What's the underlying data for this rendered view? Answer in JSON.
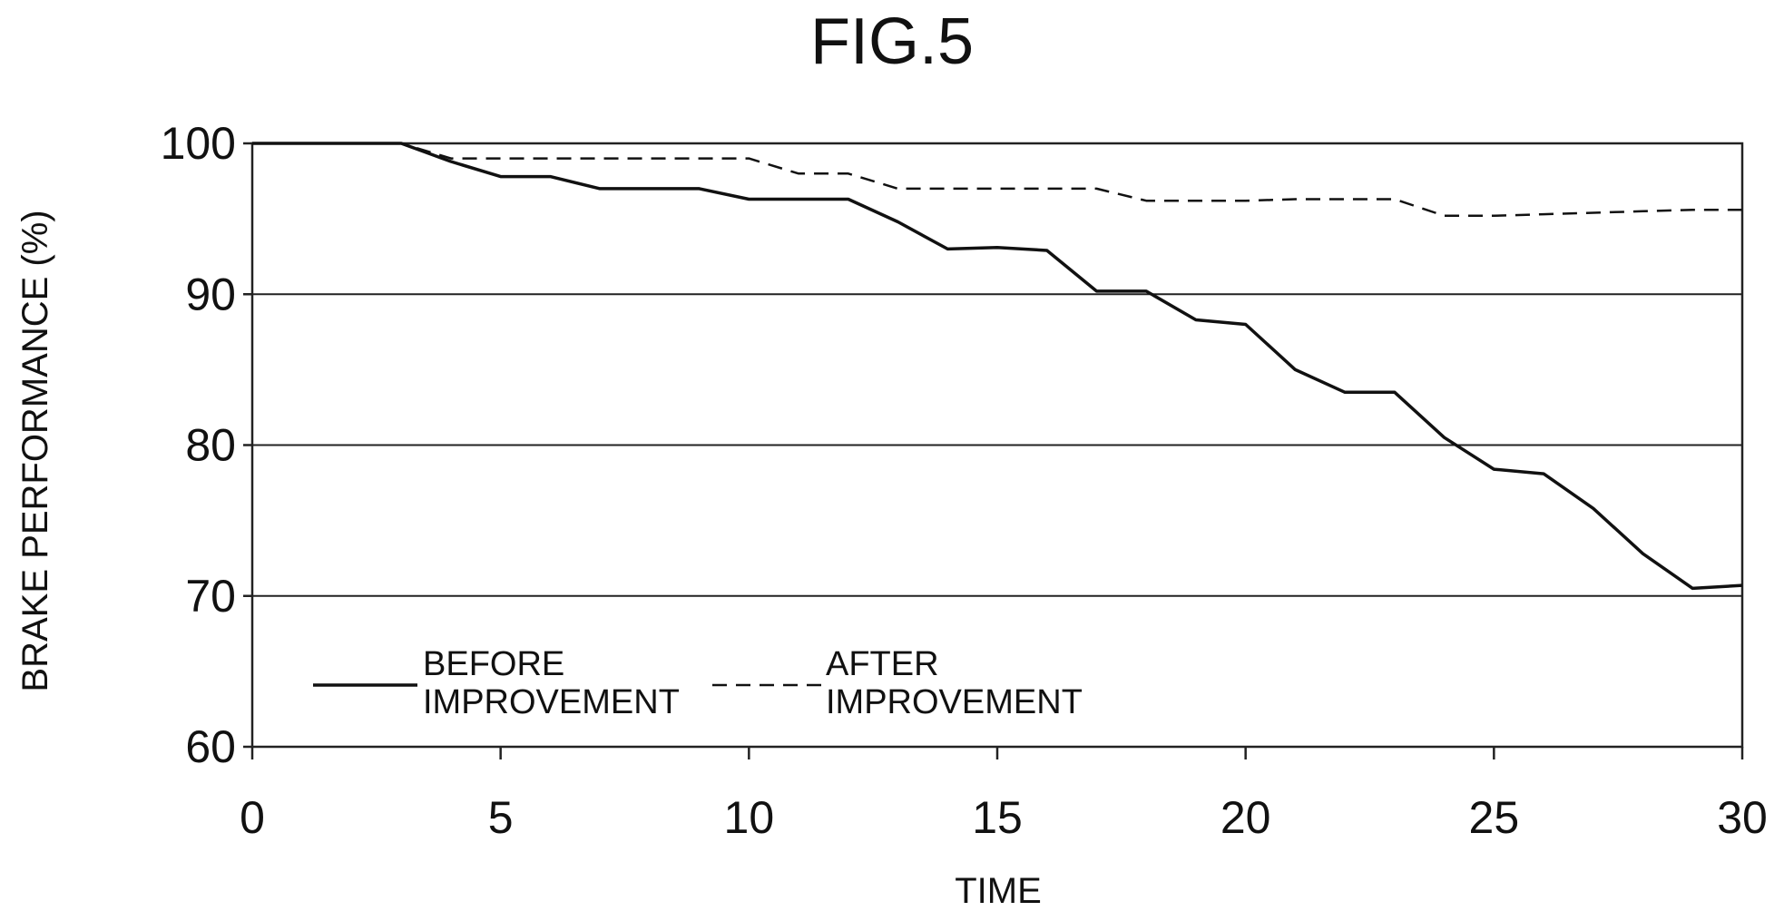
{
  "chart_data": {
    "type": "line",
    "title": "FIG.5",
    "xlabel": "TIME",
    "ylabel": "BRAKE PERFORMANCE (%)",
    "xlim": [
      0,
      30
    ],
    "ylim": [
      60,
      100
    ],
    "xticks": [
      0,
      5,
      10,
      15,
      20,
      25,
      30
    ],
    "yticks": [
      100,
      90,
      80,
      70,
      60
    ],
    "grid": "horizontal",
    "legend_position": "bottom-left",
    "series": [
      {
        "name": "BEFORE IMPROVEMENT",
        "name_lines": [
          "BEFORE",
          "IMPROVEMENT"
        ],
        "style": "solid",
        "points": [
          [
            0,
            100
          ],
          [
            3,
            100
          ],
          [
            4,
            98.8
          ],
          [
            5,
            97.8
          ],
          [
            6,
            97.8
          ],
          [
            7,
            97
          ],
          [
            8,
            97
          ],
          [
            9,
            97
          ],
          [
            10,
            96.3
          ],
          [
            11,
            96.3
          ],
          [
            12,
            96.3
          ],
          [
            13,
            94.8
          ],
          [
            14,
            93
          ],
          [
            15,
            93.1
          ],
          [
            16,
            92.9
          ],
          [
            17,
            90.2
          ],
          [
            18,
            90.2
          ],
          [
            19,
            88.3
          ],
          [
            20,
            88
          ],
          [
            21,
            85
          ],
          [
            22,
            83.5
          ],
          [
            23,
            83.5
          ],
          [
            24,
            80.5
          ],
          [
            25,
            78.4
          ],
          [
            26,
            78.1
          ],
          [
            27,
            75.8
          ],
          [
            28,
            72.8
          ],
          [
            29,
            70.5
          ],
          [
            30,
            70.7
          ]
        ]
      },
      {
        "name": "AFTER IMPROVEMENT",
        "name_lines": [
          "AFTER",
          "IMPROVEMENT"
        ],
        "style": "dashed",
        "points": [
          [
            0,
            100
          ],
          [
            3,
            100
          ],
          [
            4,
            99
          ],
          [
            5,
            99
          ],
          [
            6,
            99
          ],
          [
            7,
            99
          ],
          [
            8,
            99
          ],
          [
            9,
            99
          ],
          [
            10,
            99
          ],
          [
            11,
            98
          ],
          [
            12,
            98
          ],
          [
            13,
            97
          ],
          [
            14,
            97
          ],
          [
            15,
            97
          ],
          [
            16,
            97
          ],
          [
            17,
            97
          ],
          [
            18,
            96.2
          ],
          [
            19,
            96.2
          ],
          [
            20,
            96.2
          ],
          [
            21,
            96.3
          ],
          [
            22,
            96.3
          ],
          [
            23,
            96.3
          ],
          [
            24,
            95.2
          ],
          [
            25,
            95.2
          ],
          [
            26,
            95.3
          ],
          [
            27,
            95.4
          ],
          [
            28,
            95.5
          ],
          [
            29,
            95.6
          ],
          [
            30,
            95.6
          ]
        ]
      }
    ]
  }
}
